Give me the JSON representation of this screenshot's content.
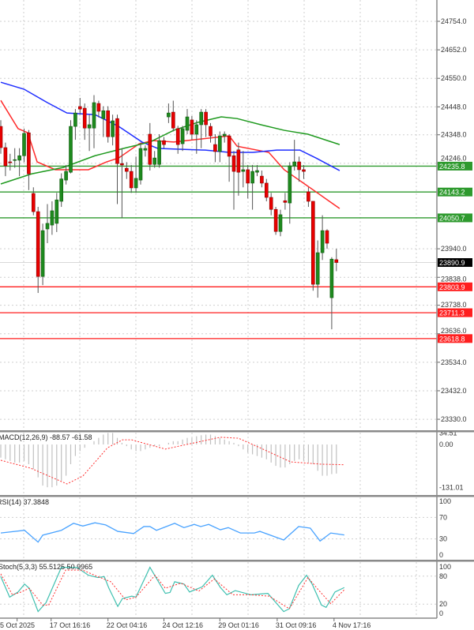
{
  "chart_data": {
    "type": "candlestick",
    "price_axis": {
      "ylim": [
        23330.0,
        24754.0
      ],
      "ticks": [
        "24754.0",
        "24652.0",
        "24550.0",
        "24448.0",
        "24348.0",
        "24246.0",
        "23940.0",
        "23838.0",
        "23738.0",
        "23636.0",
        "23534.0",
        "23432.0",
        "23330.0"
      ],
      "tick_values": [
        24754,
        24652,
        24550,
        24448,
        24348,
        24246,
        23940,
        23838,
        23738,
        23636,
        23534,
        23432,
        23330
      ]
    },
    "time_axis": {
      "labels": [
        "5 Oct 2025",
        "17 Oct 16:16",
        "22 Oct 04:16",
        "24 Oct 12:16",
        "29 Oct 01:16",
        "31 Oct 09:16",
        "4 Nov 17:16"
      ],
      "label_candle_index": [
        3.5,
        10.8,
        23,
        35,
        47,
        59.3,
        71.5
      ]
    },
    "candles_ohlc": [
      [
        24378,
        24400,
        24280,
        24302
      ],
      [
        24302,
        24320,
        24200,
        24237
      ],
      [
        24251,
        24280,
        24220,
        24248
      ],
      [
        24257,
        24300,
        24230,
        24259
      ],
      [
        24257,
        24300,
        24200,
        24273
      ],
      [
        24273,
        24370,
        24250,
        24353
      ],
      [
        24355,
        24365,
        24150,
        24208
      ],
      [
        24138,
        24160,
        24060,
        24073
      ],
      [
        24073,
        24090,
        23782,
        23841
      ],
      [
        23841,
        24030,
        23810,
        24005
      ],
      [
        24011,
        24100,
        23960,
        24031
      ],
      [
        24025,
        24110,
        23990,
        24076
      ],
      [
        24031,
        24140,
        24000,
        24115
      ],
      [
        24110,
        24210,
        24090,
        24190
      ],
      [
        24186,
        24240,
        24170,
        24217
      ],
      [
        24214,
        24400,
        24210,
        24378
      ],
      [
        24378,
        24440,
        24330,
        24426
      ],
      [
        24449,
        24480,
        24420,
        24440
      ],
      [
        24443,
        24460,
        24330,
        24372
      ],
      [
        24372,
        24420,
        24290,
        24384
      ],
      [
        24372,
        24490,
        24300,
        24463
      ],
      [
        24460,
        24470,
        24410,
        24432
      ],
      [
        24406,
        24450,
        24340,
        24434
      ],
      [
        24434,
        24450,
        24320,
        24341
      ],
      [
        24341,
        24420,
        24310,
        24398
      ],
      [
        24406,
        24420,
        24100,
        24245
      ],
      [
        24245,
        24300,
        24050,
        24240
      ],
      [
        24228,
        24250,
        24190,
        24217
      ],
      [
        24217,
        24240,
        24140,
        24158
      ],
      [
        24158,
        24270,
        24140,
        24192
      ],
      [
        24186,
        24320,
        24170,
        24299
      ],
      [
        24293,
        24310,
        24270,
        24299
      ],
      [
        24350,
        24390,
        24220,
        24242
      ],
      [
        24242,
        24290,
        24230,
        24265
      ],
      [
        24242,
        24350,
        24230,
        24327
      ],
      [
        24327,
        24340,
        24300,
        24313
      ],
      [
        24412,
        24460,
        24390,
        24426
      ],
      [
        24429,
        24470,
        24360,
        24372
      ],
      [
        24370,
        24380,
        24280,
        24313
      ],
      [
        24316,
        24380,
        24290,
        24370
      ],
      [
        24364,
        24440,
        24350,
        24412
      ],
      [
        24401,
        24415,
        24330,
        24350
      ],
      [
        24350,
        24400,
        24280,
        24384
      ],
      [
        24384,
        24440,
        24300,
        24429
      ],
      [
        24429,
        24440,
        24340,
        24384
      ],
      [
        24378,
        24390,
        24320,
        24344
      ],
      [
        24313,
        24350,
        24250,
        24288
      ],
      [
        24288,
        24360,
        24250,
        24344
      ],
      [
        24344,
        24360,
        24320,
        24350
      ],
      [
        24344,
        24350,
        24180,
        24271
      ],
      [
        24273,
        24290,
        24080,
        24217
      ],
      [
        24294,
        24320,
        24130,
        24214
      ],
      [
        24217,
        24290,
        24160,
        24223
      ],
      [
        24223,
        24240,
        24120,
        24175
      ],
      [
        24175,
        24240,
        24080,
        24217
      ],
      [
        24214,
        24240,
        24200,
        24220
      ],
      [
        24200,
        24220,
        24160,
        24175
      ],
      [
        24175,
        24190,
        24110,
        24124
      ],
      [
        24124,
        24140,
        24060,
        24081
      ],
      [
        24081,
        24090,
        23990,
        24002
      ],
      [
        24002,
        24080,
        23985,
        24062
      ],
      [
        24112,
        24140,
        24080,
        24106
      ],
      [
        24104,
        24250,
        24030,
        24237
      ],
      [
        24237,
        24330,
        24220,
        24251
      ],
      [
        24251,
        24270,
        24180,
        24223
      ],
      [
        24223,
        24240,
        24190,
        24217
      ],
      [
        24144,
        24160,
        24090,
        24110
      ],
      [
        24110,
        24110,
        23790,
        23813
      ],
      [
        23813,
        23970,
        23765,
        23926
      ],
      [
        23926,
        24060,
        23900,
        24005
      ],
      [
        24005,
        24010,
        23940,
        23960
      ],
      [
        23765,
        23910,
        23652,
        23903
      ],
      [
        23901,
        23940,
        23860,
        23891
      ]
    ],
    "moving_averages": [
      {
        "color": "#ff2a2a",
        "points": [
          [
            0,
            24471
          ],
          [
            3.7,
            24370
          ],
          [
            5.8,
            24355
          ],
          [
            7.8,
            24251
          ],
          [
            11.7,
            24223
          ],
          [
            14.7,
            24223
          ],
          [
            18.8,
            24223
          ],
          [
            22.7,
            24251
          ],
          [
            25.3,
            24265
          ],
          [
            29.7,
            24316
          ],
          [
            32.7,
            24327
          ],
          [
            37.1,
            24322
          ],
          [
            49,
            24344
          ],
          [
            50.7,
            24307
          ],
          [
            57.5,
            24285
          ],
          [
            60.8,
            24223
          ],
          [
            67.6,
            24144
          ],
          [
            72.7,
            24084
          ]
        ]
      },
      {
        "color": "#1f2eff",
        "points": [
          [
            0,
            24536
          ],
          [
            5,
            24511
          ],
          [
            10,
            24463
          ],
          [
            14.2,
            24426
          ],
          [
            20.2,
            24420
          ],
          [
            25.3,
            24378
          ],
          [
            30.3,
            24322
          ],
          [
            33.7,
            24299
          ],
          [
            38.8,
            24296
          ],
          [
            43.9,
            24293
          ],
          [
            49,
            24285
          ],
          [
            54.1,
            24285
          ],
          [
            59.2,
            24293
          ],
          [
            64.2,
            24293
          ],
          [
            67.6,
            24265
          ],
          [
            72.7,
            24220
          ]
        ]
      },
      {
        "color": "#1f9a1f",
        "points": [
          [
            0,
            24172
          ],
          [
            6.6,
            24208
          ],
          [
            13.4,
            24231
          ],
          [
            20.2,
            24273
          ],
          [
            27,
            24302
          ],
          [
            32,
            24322
          ],
          [
            37.1,
            24364
          ],
          [
            42.2,
            24392
          ],
          [
            47.3,
            24412
          ],
          [
            50.7,
            24406
          ],
          [
            55.8,
            24384
          ],
          [
            60.8,
            24364
          ],
          [
            65.9,
            24350
          ],
          [
            72.7,
            24313
          ]
        ]
      }
    ],
    "levels": [
      {
        "value": "24235.8",
        "color": "#2e9a2e"
      },
      {
        "value": "24143.2",
        "color": "#2e9a2e"
      },
      {
        "value": "24050.7",
        "color": "#2e9a2e"
      },
      {
        "value": "23803.9",
        "color": "#ff1f1f"
      },
      {
        "value": "23711.3",
        "color": "#ff1f1f"
      },
      {
        "value": "23618.8",
        "color": "#ff1f1f"
      }
    ],
    "current_price": "23890.9",
    "macd": {
      "title": "MACD(12,26,9) -88.57 -61.58",
      "axis_labels": [
        "34.51",
        "0.00",
        "-131.01"
      ],
      "axis_values": [
        34.51,
        0,
        -131.01
      ],
      "histogram": [
        -40,
        -45,
        -50,
        -55,
        -55,
        -50,
        -60,
        -75,
        -100,
        -125,
        -130,
        -130,
        -125,
        -110,
        -95,
        -60,
        -35,
        -20,
        -10,
        0,
        10,
        20,
        30,
        35,
        35,
        20,
        5,
        -5,
        -15,
        -20,
        -20,
        -15,
        -10,
        -5,
        -5,
        0,
        5,
        10,
        10,
        15,
        20,
        20,
        25,
        28,
        30,
        30,
        25,
        20,
        15,
        10,
        5,
        -5,
        -15,
        -25,
        -30,
        -35,
        -40,
        -45,
        -55,
        -65,
        -70,
        -70,
        -60,
        -50,
        -45,
        -50,
        -55,
        -60,
        -80,
        -95,
        -95,
        -90,
        -88.57
      ],
      "signal_points": [
        [
          0,
          -48
        ],
        [
          6.4,
          -72
        ],
        [
          14.2,
          -120
        ],
        [
          17.6,
          -96
        ],
        [
          22.9,
          -10
        ],
        [
          26.1,
          14
        ],
        [
          28.1,
          14
        ],
        [
          35.3,
          -14
        ],
        [
          47.1,
          22
        ],
        [
          51,
          19
        ],
        [
          55.6,
          -10
        ],
        [
          62.2,
          -53
        ],
        [
          68.8,
          -60
        ],
        [
          73.7,
          -61.58
        ]
      ]
    },
    "rsi": {
      "title": "RSI(14) 37.3848",
      "axis_labels": [
        "100",
        "70",
        "30",
        "0"
      ],
      "axis_values": [
        100,
        70,
        30,
        0
      ],
      "points": [
        [
          0,
          41
        ],
        [
          5.1,
          46
        ],
        [
          8,
          24
        ],
        [
          9,
          37
        ],
        [
          13,
          46
        ],
        [
          15.6,
          59
        ],
        [
          17.6,
          54
        ],
        [
          20.2,
          60
        ],
        [
          22.5,
          56
        ],
        [
          25.1,
          44
        ],
        [
          28.5,
          40
        ],
        [
          30.7,
          53
        ],
        [
          32,
          53
        ],
        [
          33.4,
          46
        ],
        [
          37.3,
          59
        ],
        [
          39.3,
          51
        ],
        [
          41.5,
          57
        ],
        [
          42.9,
          53
        ],
        [
          44.6,
          57
        ],
        [
          47.1,
          47
        ],
        [
          48.8,
          51
        ],
        [
          51.4,
          41
        ],
        [
          54.4,
          41
        ],
        [
          55.6,
          44
        ],
        [
          60.7,
          28
        ],
        [
          63.9,
          53
        ],
        [
          66.4,
          50
        ],
        [
          68.5,
          26
        ],
        [
          70.8,
          41
        ],
        [
          73.7,
          37.38
        ]
      ]
    },
    "stoch": {
      "title": "Stoch(5,3,3) 55.5125 50.9965",
      "axis_labels": [
        "100",
        "80",
        "20",
        "0"
      ],
      "axis_values": [
        100,
        80,
        20,
        0
      ],
      "main_points": [
        [
          0,
          79
        ],
        [
          1.9,
          35
        ],
        [
          3.7,
          46
        ],
        [
          5.1,
          63
        ],
        [
          6.1,
          54
        ],
        [
          8,
          4
        ],
        [
          9.7,
          23
        ],
        [
          13,
          99
        ],
        [
          16.3,
          99
        ],
        [
          18.8,
          82
        ],
        [
          20.8,
          77
        ],
        [
          22.2,
          79
        ],
        [
          23.2,
          54
        ],
        [
          25.1,
          15
        ],
        [
          26.1,
          32
        ],
        [
          28.1,
          37
        ],
        [
          29,
          35
        ],
        [
          32,
          99
        ],
        [
          35.3,
          43
        ],
        [
          36.3,
          45
        ],
        [
          37.3,
          68
        ],
        [
          39.3,
          63
        ],
        [
          40.5,
          46
        ],
        [
          43.2,
          57
        ],
        [
          45.4,
          82
        ],
        [
          47.1,
          56
        ],
        [
          48.5,
          40
        ],
        [
          50.3,
          49
        ],
        [
          53.7,
          40
        ],
        [
          57.3,
          43
        ],
        [
          60.7,
          4
        ],
        [
          61.9,
          10
        ],
        [
          63.9,
          60
        ],
        [
          65.6,
          82
        ],
        [
          66.8,
          63
        ],
        [
          68.8,
          18
        ],
        [
          69.8,
          13
        ],
        [
          71.7,
          46
        ],
        [
          73.7,
          55.51
        ]
      ],
      "signal_points": [
        [
          0,
          85
        ],
        [
          2.5,
          40
        ],
        [
          4.4,
          46
        ],
        [
          6.1,
          54
        ],
        [
          9,
          18
        ],
        [
          10.3,
          18
        ],
        [
          13.9,
          93
        ],
        [
          17.6,
          93
        ],
        [
          20.8,
          79
        ],
        [
          23.6,
          68
        ],
        [
          26.8,
          29
        ],
        [
          29,
          35
        ],
        [
          33.1,
          82
        ],
        [
          35.3,
          54
        ],
        [
          38.6,
          65
        ],
        [
          42.5,
          48
        ],
        [
          45.8,
          74
        ],
        [
          49.8,
          40
        ],
        [
          53.7,
          40
        ],
        [
          57.6,
          37
        ],
        [
          61.9,
          10
        ],
        [
          65.9,
          77
        ],
        [
          68.1,
          51
        ],
        [
          70.8,
          21
        ],
        [
          73.7,
          51
        ]
      ]
    },
    "grid": true
  }
}
